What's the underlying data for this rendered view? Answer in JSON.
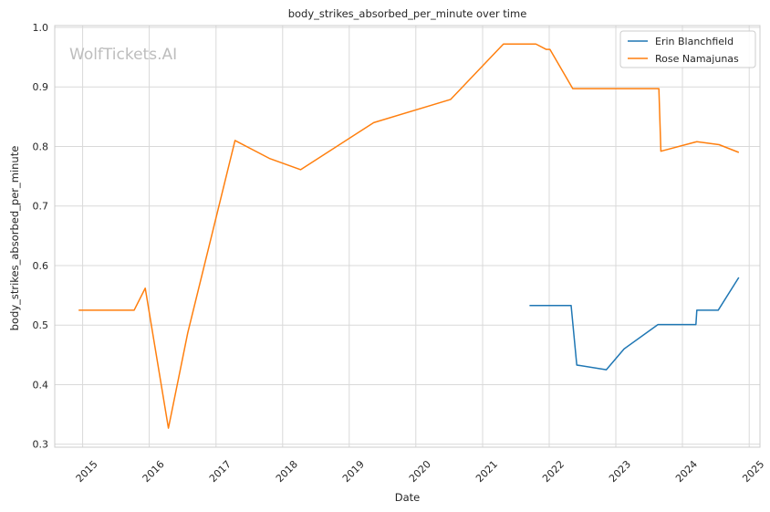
{
  "chart_data": {
    "type": "line",
    "title": "body_strikes_absorbed_per_minute over time",
    "xlabel": "Date",
    "ylabel": "body_strikes_absorbed_per_minute",
    "watermark": "WolfTickets.AI",
    "xlim": [
      "2014-08-01",
      "2025-03-01"
    ],
    "ylim": [
      0.295,
      1.003
    ],
    "x_ticks": [
      "2015",
      "2016",
      "2017",
      "2018",
      "2019",
      "2020",
      "2021",
      "2022",
      "2023",
      "2024",
      "2025"
    ],
    "y_ticks": [
      "0.3",
      "0.4",
      "0.5",
      "0.6",
      "0.7",
      "0.8",
      "0.9",
      "1.0"
    ],
    "grid": true,
    "legend_position": "top-right",
    "series": [
      {
        "name": "Erin Blanchfield",
        "color": "#1f77b4",
        "points": [
          [
            "2021-09-15",
            0.533
          ],
          [
            "2022-05-01",
            0.533
          ],
          [
            "2022-06-01",
            0.433
          ],
          [
            "2022-11-10",
            0.425
          ],
          [
            "2023-02-15",
            0.46
          ],
          [
            "2023-08-20",
            0.501
          ],
          [
            "2024-03-15",
            0.501
          ],
          [
            "2024-03-20",
            0.525
          ],
          [
            "2024-07-15",
            0.525
          ],
          [
            "2024-11-05",
            0.58
          ]
        ]
      },
      {
        "name": "Rose Namajunas",
        "color": "#ff7f0e",
        "points": [
          [
            "2014-12-10",
            0.525
          ],
          [
            "2015-10-10",
            0.525
          ],
          [
            "2015-12-10",
            0.562
          ],
          [
            "2016-04-15",
            0.327
          ],
          [
            "2016-07-30",
            0.487
          ],
          [
            "2017-04-15",
            0.81
          ],
          [
            "2017-10-20",
            0.78
          ],
          [
            "2018-04-10",
            0.761
          ],
          [
            "2019-05-15",
            0.84
          ],
          [
            "2020-07-10",
            0.879
          ],
          [
            "2021-04-25",
            0.972
          ],
          [
            "2021-10-20",
            0.972
          ],
          [
            "2021-12-15",
            0.963
          ],
          [
            "2022-01-05",
            0.963
          ],
          [
            "2022-05-10",
            0.897
          ],
          [
            "2023-08-25",
            0.897
          ],
          [
            "2023-09-05",
            0.792
          ],
          [
            "2024-03-20",
            0.808
          ],
          [
            "2024-07-20",
            0.803
          ],
          [
            "2024-11-05",
            0.79
          ]
        ]
      }
    ]
  }
}
